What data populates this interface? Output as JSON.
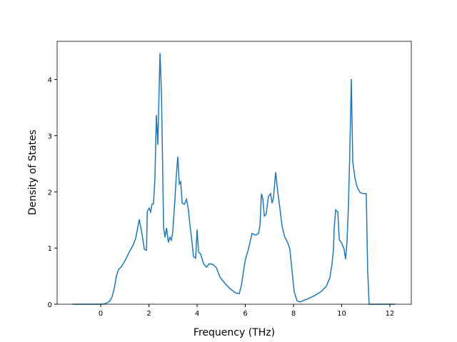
{
  "chart_data": {
    "type": "line",
    "xlabel": "Frequency (THz)",
    "ylabel": "Density of States",
    "xlim": [
      -1.81,
      12.89
    ],
    "ylim": [
      0,
      4.68
    ],
    "xticks": [
      0,
      2,
      4,
      6,
      8,
      10,
      12
    ],
    "yticks": [
      0,
      1,
      2,
      3,
      4
    ],
    "series": [
      {
        "color": "#1f77b4",
        "x": [
          -1.16,
          0,
          0.2,
          0.36,
          0.47,
          0.56,
          0.65,
          0.74,
          0.86,
          1.0,
          1.16,
          1.33,
          1.45,
          1.6,
          1.72,
          1.81,
          1.9,
          1.93,
          2.01,
          2.07,
          2.13,
          2.19,
          2.25,
          2.31,
          2.37,
          2.46,
          2.52,
          2.61,
          2.67,
          2.73,
          2.81,
          2.87,
          2.93,
          2.99,
          3.08,
          3.14,
          3.2,
          3.26,
          3.32,
          3.38,
          3.47,
          3.56,
          3.64,
          3.7,
          3.79,
          3.85,
          3.94,
          4.0,
          4.06,
          4.15,
          4.27,
          4.39,
          4.5,
          4.65,
          4.8,
          4.95,
          5.16,
          5.36,
          5.6,
          5.75,
          5.84,
          5.93,
          6.01,
          6.13,
          6.22,
          6.28,
          6.43,
          6.55,
          6.61,
          6.67,
          6.73,
          6.79,
          6.87,
          6.96,
          7.05,
          7.11,
          7.17,
          7.26,
          7.35,
          7.41,
          7.53,
          7.64,
          7.76,
          7.85,
          7.94,
          8.03,
          8.15,
          8.27,
          8.56,
          8.86,
          9.16,
          9.36,
          9.51,
          9.6,
          9.66,
          9.69,
          9.75,
          9.84,
          9.9,
          10.01,
          10.1,
          10.16,
          10.22,
          10.28,
          10.34,
          10.4,
          10.46,
          10.55,
          10.64,
          10.76,
          10.87,
          11.02,
          11.08,
          11.14,
          12.21
        ],
        "values": [
          0,
          0,
          0.01,
          0.05,
          0.13,
          0.28,
          0.5,
          0.62,
          0.67,
          0.77,
          0.91,
          1.04,
          1.17,
          1.51,
          1.23,
          0.98,
          0.96,
          1.65,
          1.71,
          1.64,
          1.78,
          1.79,
          2.25,
          3.37,
          2.84,
          4.47,
          3.77,
          1.36,
          1.19,
          1.36,
          1.1,
          1.19,
          1.14,
          1.29,
          1.87,
          2.31,
          2.63,
          2.14,
          2.18,
          1.8,
          1.78,
          1.87,
          1.68,
          1.42,
          1.1,
          0.85,
          0.82,
          1.33,
          0.93,
          0.89,
          0.72,
          0.66,
          0.72,
          0.71,
          0.65,
          0.48,
          0.37,
          0.28,
          0.2,
          0.19,
          0.34,
          0.6,
          0.81,
          0.98,
          1.15,
          1.26,
          1.23,
          1.26,
          1.41,
          1.97,
          1.87,
          1.57,
          1.61,
          1.92,
          1.97,
          1.8,
          1.89,
          2.35,
          1.99,
          1.8,
          1.38,
          1.19,
          1.1,
          0.98,
          0.6,
          0.22,
          0.06,
          0.04,
          0.09,
          0.15,
          0.23,
          0.32,
          0.47,
          0.72,
          0.98,
          1.36,
          1.68,
          1.64,
          1.15,
          1.08,
          0.98,
          0.8,
          1.1,
          1.74,
          2.75,
          4.01,
          2.55,
          2.25,
          2.09,
          1.99,
          1.97,
          1.97,
          0.6,
          0,
          0
        ]
      }
    ]
  }
}
